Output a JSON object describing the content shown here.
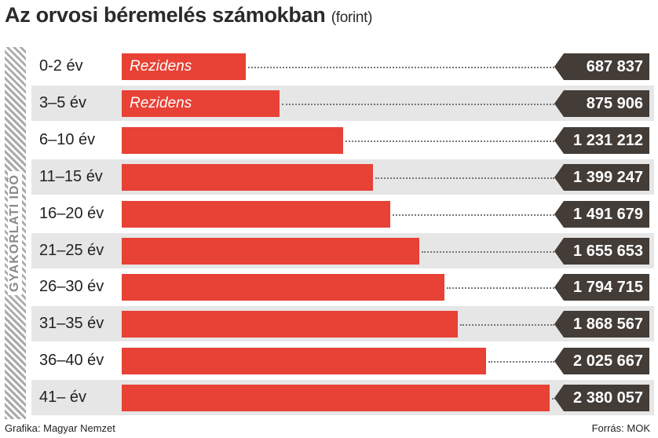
{
  "chart_data": {
    "type": "bar",
    "orientation": "horizontal",
    "title": "Az orvosi béremelés számokban",
    "subtitle": "(forint)",
    "ylabel": "GYAKORLATI IDŐ",
    "categories": [
      "0-2 év",
      "3–5 év",
      "6–10 év",
      "11–15 év",
      "16–20 év",
      "21–25 év",
      "26–30 év",
      "31–35 év",
      "36–40 év",
      "41– év"
    ],
    "values": [
      687837,
      875906,
      1231212,
      1399247,
      1491679,
      1655653,
      1794715,
      1868567,
      2025667,
      2380057
    ],
    "value_labels": [
      "687 837",
      "875 906",
      "1 231 212",
      "1 399 247",
      "1 491 679",
      "1 655 653",
      "1 794 715",
      "1 868 567",
      "2 025 667",
      "2 380 057"
    ],
    "bar_annotations": [
      "Rezidens",
      "Rezidens",
      "",
      "",
      "",
      "",
      "",
      "",
      "",
      ""
    ],
    "xlim": [
      0,
      2380057
    ],
    "colors": {
      "bar": "#e84135",
      "label_bg": "#433c37"
    }
  },
  "footer": {
    "credit": "Grafika: Magyar Nemzet",
    "source": "Forrás: MOK"
  }
}
